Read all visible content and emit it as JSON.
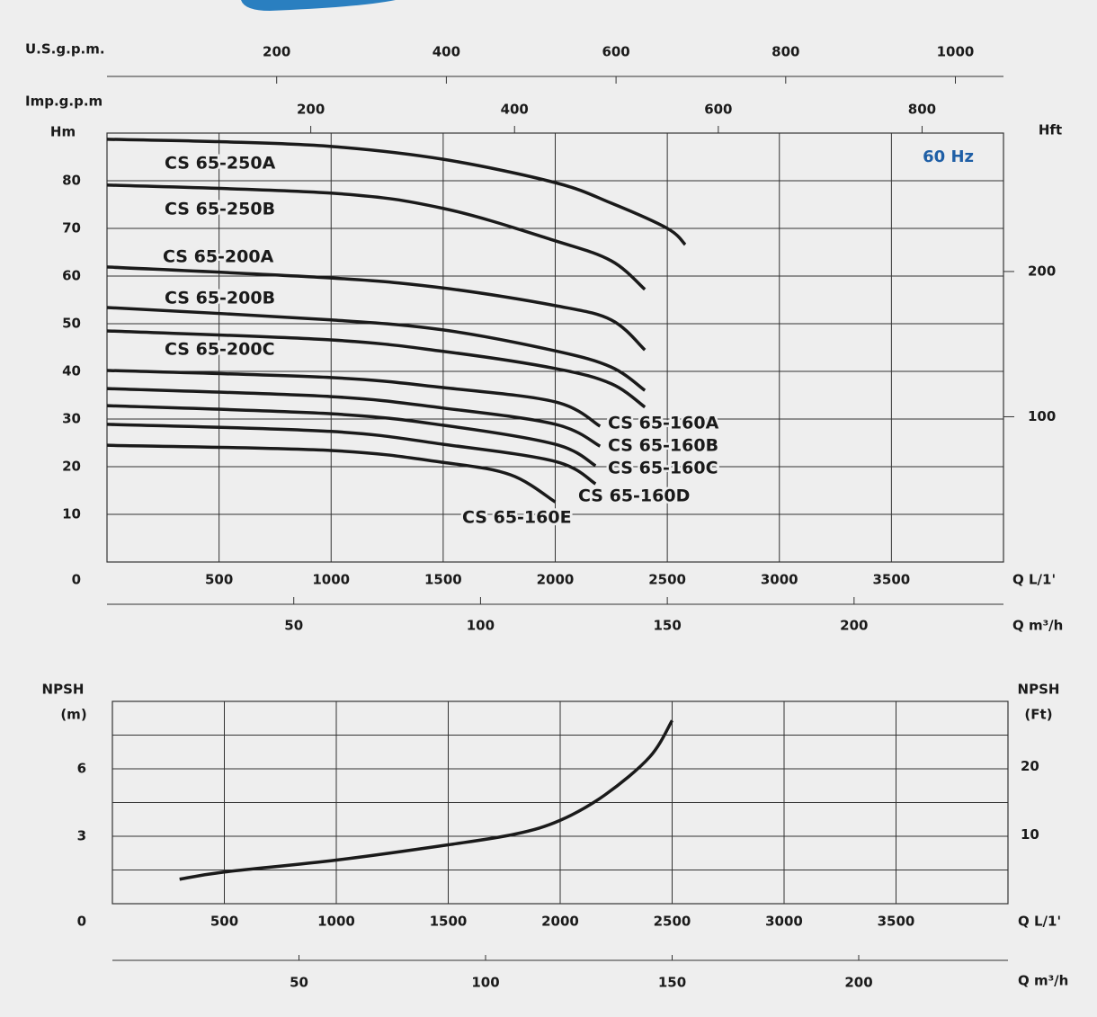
{
  "chart_data": [
    {
      "type": "line",
      "x_label": "Q L/1'",
      "y_label": "Hm",
      "y2_label": "Hft",
      "annotation": "60 Hz",
      "xlim": [
        0,
        4000
      ],
      "xticks": [
        500,
        1000,
        1500,
        2000,
        2500,
        3000,
        3500
      ],
      "ylim": [
        0,
        90
      ],
      "yticks": [
        0,
        10,
        20,
        30,
        40,
        50,
        60,
        70,
        80
      ],
      "y2lim": [
        0,
        295.3
      ],
      "y2ticks": [
        100,
        200
      ],
      "grid": true,
      "secondary_x_axes": [
        {
          "label": "U.S.g.p.m.",
          "lim": [
            0,
            1056.7
          ],
          "ticks": [
            200,
            400,
            600,
            800,
            1000
          ]
        },
        {
          "label": "Imp.g.p.m",
          "lim": [
            0,
            879.9
          ],
          "ticks": [
            200,
            400,
            600,
            800
          ]
        },
        {
          "label": "Q m³/h",
          "lim": [
            0,
            240
          ],
          "ticks": [
            50,
            100,
            150,
            200
          ]
        }
      ],
      "series": [
        {
          "name": "CS 65-250A",
          "color": "#1a1a1a",
          "x": [
            0,
            500,
            1000,
            1500,
            2000,
            2250,
            2500,
            2580
          ],
          "values": [
            88.7,
            88.2,
            87.2,
            84.5,
            79.6,
            75.3,
            70,
            66.6
          ]
        },
        {
          "name": "CS 65-250B",
          "color": "#1a1a1a",
          "x": [
            0,
            1000,
            1500,
            2000,
            2250,
            2400
          ],
          "values": [
            79.1,
            77.4,
            74.2,
            67.4,
            63.2,
            57.2
          ]
        },
        {
          "name": "CS 65-200A",
          "color": "#1a1a1a",
          "x": [
            0,
            1000,
            1500,
            2000,
            2250,
            2400
          ],
          "values": [
            61.9,
            59.6,
            57.5,
            53.8,
            50.8,
            44.5
          ]
        },
        {
          "name": "CS 65-200B",
          "color": "#1a1a1a",
          "x": [
            0,
            1000,
            1500,
            2000,
            2250,
            2400
          ],
          "values": [
            53.4,
            50.8,
            48.7,
            44.3,
            40.9,
            36
          ]
        },
        {
          "name": "CS 65-200C",
          "color": "#1a1a1a",
          "x": [
            0,
            1000,
            1500,
            2000,
            2250,
            2400
          ],
          "values": [
            48.5,
            46.6,
            44.2,
            40.6,
            37.4,
            32.5
          ]
        },
        {
          "name": "CS 65-160A",
          "color": "#1a1a1a",
          "x": [
            0,
            1000,
            1500,
            2000,
            2200
          ],
          "values": [
            40.2,
            38.7,
            36.6,
            33.6,
            28.5
          ]
        },
        {
          "name": "CS 65-160B",
          "color": "#1a1a1a",
          "x": [
            0,
            1000,
            1500,
            2000,
            2200
          ],
          "values": [
            36.4,
            34.7,
            32.3,
            28.9,
            24.3
          ]
        },
        {
          "name": "CS 65-160C",
          "color": "#1a1a1a",
          "x": [
            0,
            1000,
            1500,
            2000,
            2180
          ],
          "values": [
            32.8,
            31.1,
            28.7,
            24.7,
            20.2
          ]
        },
        {
          "name": "CS 65-160D",
          "color": "#1a1a1a",
          "x": [
            0,
            1000,
            1500,
            2000,
            2180
          ],
          "values": [
            28.9,
            27.4,
            24.7,
            21.1,
            16.4
          ]
        },
        {
          "name": "CS 65-160E",
          "color": "#1a1a1a",
          "x": [
            0,
            1000,
            1500,
            1800,
            2000
          ],
          "values": [
            24.5,
            23.4,
            20.9,
            18.3,
            12.6
          ]
        }
      ]
    },
    {
      "type": "line",
      "x_label": "Q L/1'",
      "y_label": "NPSH",
      "y_unit": "(m)",
      "y2_label": "NPSH",
      "y2_unit": "(Ft)",
      "xlim": [
        0,
        4000
      ],
      "xticks": [
        500,
        1000,
        1500,
        2000,
        2500,
        3000,
        3500
      ],
      "ylim": [
        0,
        9
      ],
      "yticks": [
        0,
        3,
        6
      ],
      "ygrid": [
        1.5,
        3,
        4.5,
        6,
        7.5
      ],
      "y2lim": [
        0,
        29.5
      ],
      "y2ticks": [
        10,
        20
      ],
      "grid": true,
      "secondary_x_axes": [
        {
          "label": "Q m³/h",
          "lim": [
            0,
            240
          ],
          "ticks": [
            50,
            100,
            150,
            200
          ]
        }
      ],
      "series": [
        {
          "color": "#1a1a1a",
          "x": [
            300,
            500,
            1000,
            1500,
            1800,
            2000,
            2200,
            2400,
            2500
          ],
          "values": [
            1.09,
            1.41,
            1.94,
            2.62,
            3.1,
            3.71,
            4.84,
            6.53,
            8.15
          ]
        }
      ]
    }
  ]
}
